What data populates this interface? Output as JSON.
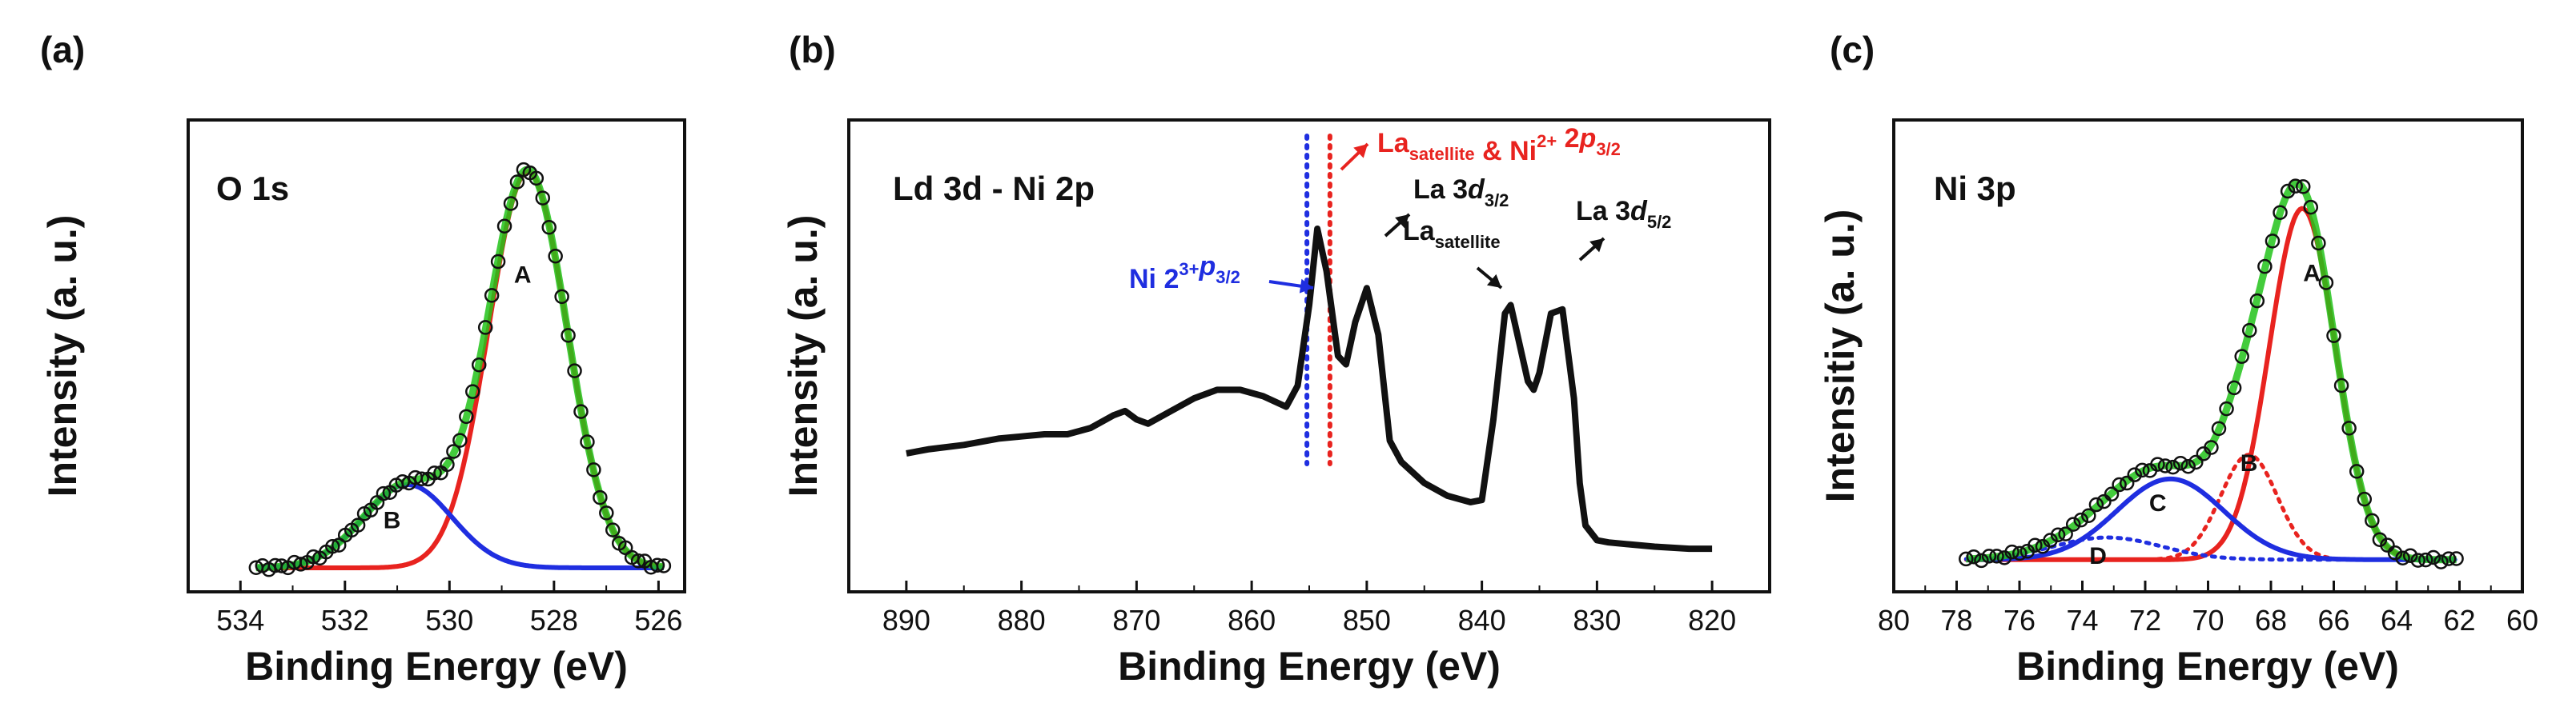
{
  "chart_data": [
    {
      "id": "a",
      "type": "line",
      "panel_label": "(a)",
      "title": "O 1s",
      "xlabel": "Binding Energy (eV)",
      "ylabel": "Intensity (a. u.)",
      "xlim": [
        535,
        525.5
      ],
      "ylim": [
        0,
        1.05
      ],
      "xticks": [
        534,
        532,
        530,
        528,
        526
      ],
      "peaks": [
        {
          "name": "A",
          "center": 528.5,
          "height": 1.0,
          "sigma": 0.75,
          "color": "#e8231f"
        },
        {
          "name": "B",
          "center": 530.8,
          "height": 0.21,
          "sigma": 0.85,
          "color": "#1f2ee0"
        }
      ],
      "envelope_color": "#22c31a",
      "data_markers": "open-circles",
      "baseline": 0.0,
      "x_range_data": [
        533.7,
        525.9
      ],
      "peak_labels": [
        {
          "text": "A",
          "x": 528.6,
          "y": 0.72
        },
        {
          "text": "B",
          "x": 531.1,
          "y": 0.1
        }
      ]
    },
    {
      "id": "b",
      "type": "line",
      "panel_label": "(b)",
      "title": "Ld 3d - Ni 2p",
      "xlabel": "Binding Energy (eV)",
      "ylabel": "Intensity (a. u.)",
      "xlim": [
        895,
        815
      ],
      "ylim": [
        0,
        1.0
      ],
      "xticks": [
        890,
        880,
        870,
        860,
        850,
        840,
        830,
        820
      ],
      "series": [
        {
          "name": "spectrum",
          "color": "#111111",
          "x": [
            890,
            888,
            885,
            882,
            880,
            878,
            876,
            874,
            872,
            871,
            870,
            869,
            867,
            865,
            863,
            861,
            859,
            857,
            856,
            855,
            854.3,
            853.5,
            852.5,
            851.8,
            851,
            850,
            849,
            848,
            847,
            845,
            843,
            841,
            840,
            839,
            838,
            837.5,
            837,
            836,
            835.5,
            835,
            834,
            833,
            832,
            831.5,
            831,
            830,
            829,
            827,
            825,
            822,
            820
          ],
          "y": [
            0.27,
            0.28,
            0.29,
            0.305,
            0.31,
            0.315,
            0.315,
            0.33,
            0.36,
            0.37,
            0.35,
            0.34,
            0.37,
            0.4,
            0.42,
            0.42,
            0.405,
            0.38,
            0.43,
            0.62,
            0.8,
            0.7,
            0.5,
            0.48,
            0.58,
            0.66,
            0.55,
            0.3,
            0.25,
            0.2,
            0.17,
            0.155,
            0.16,
            0.35,
            0.6,
            0.62,
            0.56,
            0.44,
            0.42,
            0.46,
            0.6,
            0.61,
            0.4,
            0.2,
            0.1,
            0.065,
            0.06,
            0.055,
            0.05,
            0.045,
            0.045
          ]
        }
      ],
      "vlines": [
        {
          "x": 855.2,
          "color": "#1f2ee0",
          "style": "dotted"
        },
        {
          "x": 853.2,
          "color": "#e8231f",
          "style": "dotted"
        }
      ],
      "annotations": [
        {
          "main": "Ni",
          "sup": "3+",
          "mid": " 2",
          "ital": "p",
          "sub": "3/2",
          "color": "#1f2ee0"
        },
        {
          "main": "La",
          "sub1": "satellite",
          "mid": " & Ni",
          "sup": "2+",
          "mid2": " 2",
          "ital": "p",
          "sub": "3/2",
          "color": "#e8231f"
        },
        {
          "main": "La 3",
          "ital": "d",
          "sub": "3/2",
          "color": "#111111"
        },
        {
          "main": "La",
          "sub": "satellite",
          "color": "#111111"
        },
        {
          "main": "La 3",
          "ital": "d",
          "sub": "5/2",
          "color": "#111111"
        }
      ]
    },
    {
      "id": "c",
      "type": "line",
      "panel_label": "(c)",
      "title": "Ni 3p",
      "xlabel": "Binding Energy (eV)",
      "ylabel": "Intensitiy (a. u.)",
      "xlim": [
        80,
        60
      ],
      "ylim": [
        0,
        1.05
      ],
      "xticks": [
        80,
        78,
        76,
        74,
        72,
        70,
        68,
        66,
        64,
        62,
        60
      ],
      "peaks": [
        {
          "name": "A",
          "center": 67.0,
          "height": 0.87,
          "sigma": 1.05,
          "color": "#e8231f",
          "style": "solid"
        },
        {
          "name": "B",
          "center": 68.7,
          "height": 0.26,
          "sigma": 0.9,
          "color": "#e8231f",
          "style": "dotted"
        },
        {
          "name": "C",
          "center": 71.2,
          "height": 0.2,
          "sigma": 1.7,
          "color": "#1f2ee0",
          "style": "solid"
        },
        {
          "name": "D",
          "center": 73.2,
          "height": 0.055,
          "sigma": 1.7,
          "color": "#1f2ee0",
          "style": "dotted"
        }
      ],
      "envelope_color": "#22c31a",
      "data_markers": "open-circles",
      "baseline": 0.04,
      "x_range_data": [
        77.7,
        62.1
      ],
      "peak_labels": [
        {
          "text": "A",
          "x": 66.7,
          "y": 0.73
        },
        {
          "text": "B",
          "x": 68.7,
          "y": 0.26
        },
        {
          "text": "C",
          "x": 71.6,
          "y": 0.16
        },
        {
          "text": "D",
          "x": 73.5,
          "y": 0.03
        }
      ]
    }
  ]
}
